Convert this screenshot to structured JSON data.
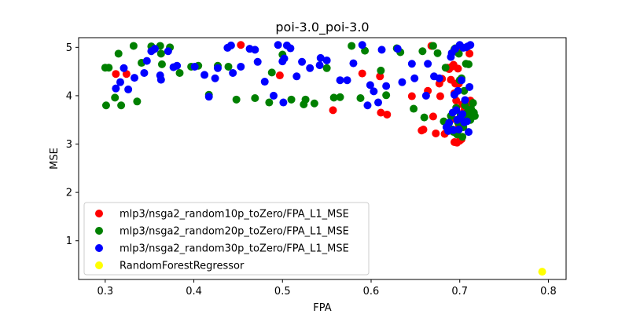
{
  "chart_data": {
    "type": "scatter",
    "title": "poi-3.0_poi-3.0",
    "xlabel": "FPA",
    "ylabel": "MSE",
    "xlim": [
      0.27,
      0.82
    ],
    "ylim": [
      0.2,
      5.2
    ],
    "xticks": [
      "0.3",
      "0.4",
      "0.5",
      "0.6",
      "0.7",
      "0.8"
    ],
    "yticks": [
      "1",
      "2",
      "3",
      "4",
      "5"
    ],
    "grid": false,
    "legend_position": "lower-left",
    "series": [
      {
        "name": "mlp3/nsga2_random10p_toZero/FPA_L1_MSE",
        "color": "#ff0000",
        "points": [
          [
            0.312,
            4.45
          ],
          [
            0.324,
            4.45
          ],
          [
            0.453,
            5.05
          ],
          [
            0.497,
            4.42
          ],
          [
            0.557,
            3.7
          ],
          [
            0.59,
            4.46
          ],
          [
            0.61,
            4.4
          ],
          [
            0.611,
            3.65
          ],
          [
            0.618,
            3.61
          ],
          [
            0.646,
            3.99
          ],
          [
            0.657,
            3.28
          ],
          [
            0.659,
            3.3
          ],
          [
            0.664,
            4.1
          ],
          [
            0.668,
            5.03
          ],
          [
            0.67,
            3.57
          ],
          [
            0.673,
            3.22
          ],
          [
            0.677,
            4.25
          ],
          [
            0.678,
            3.99
          ],
          [
            0.68,
            4.35
          ],
          [
            0.683,
            3.21
          ],
          [
            0.686,
            4.58
          ],
          [
            0.688,
            4.55
          ],
          [
            0.69,
            4.33
          ],
          [
            0.691,
            4.6
          ],
          [
            0.692,
            3.52
          ],
          [
            0.693,
            4.64
          ],
          [
            0.694,
            4.05
          ],
          [
            0.694,
            3.04
          ],
          [
            0.695,
            4.25
          ],
          [
            0.696,
            3.9
          ],
          [
            0.697,
            3.03
          ],
          [
            0.698,
            4.56
          ],
          [
            0.699,
            3.4
          ],
          [
            0.699,
            4.25
          ],
          [
            0.7,
            3.07
          ],
          [
            0.7,
            4.99
          ],
          [
            0.701,
            3.5
          ],
          [
            0.702,
            3.1
          ],
          [
            0.703,
            3.82
          ],
          [
            0.705,
            3.69
          ],
          [
            0.706,
            3.62
          ],
          [
            0.707,
            3.75
          ],
          [
            0.708,
            3.89
          ],
          [
            0.709,
            3.8
          ],
          [
            0.71,
            3.78
          ],
          [
            0.711,
            4.87
          ],
          [
            0.712,
            3.9
          ],
          [
            0.713,
            3.66
          ]
        ]
      },
      {
        "name": "mlp3/nsga2_random20p_toZero/FPA_L1_MSE",
        "color": "#008000",
        "points": [
          [
            0.3,
            4.58
          ],
          [
            0.301,
            3.8
          ],
          [
            0.304,
            4.58
          ],
          [
            0.311,
            3.96
          ],
          [
            0.315,
            4.87
          ],
          [
            0.318,
            3.8
          ],
          [
            0.332,
            5.03
          ],
          [
            0.336,
            3.88
          ],
          [
            0.341,
            4.68
          ],
          [
            0.352,
            5.02
          ],
          [
            0.354,
            4.95
          ],
          [
            0.362,
            5.03
          ],
          [
            0.363,
            4.87
          ],
          [
            0.364,
            4.65
          ],
          [
            0.373,
            5.0
          ],
          [
            0.384,
            4.47
          ],
          [
            0.397,
            4.6
          ],
          [
            0.405,
            4.62
          ],
          [
            0.417,
            4.02
          ],
          [
            0.427,
            4.62
          ],
          [
            0.439,
            4.6
          ],
          [
            0.448,
            3.92
          ],
          [
            0.469,
            3.95
          ],
          [
            0.485,
            3.86
          ],
          [
            0.488,
            4.48
          ],
          [
            0.5,
            4.85
          ],
          [
            0.51,
            3.92
          ],
          [
            0.524,
            3.82
          ],
          [
            0.526,
            3.92
          ],
          [
            0.536,
            3.84
          ],
          [
            0.55,
            4.57
          ],
          [
            0.558,
            3.96
          ],
          [
            0.565,
            3.97
          ],
          [
            0.578,
            5.03
          ],
          [
            0.588,
            3.95
          ],
          [
            0.593,
            4.93
          ],
          [
            0.611,
            4.52
          ],
          [
            0.617,
            4.01
          ],
          [
            0.629,
            4.98
          ],
          [
            0.633,
            4.9
          ],
          [
            0.648,
            3.73
          ],
          [
            0.658,
            4.92
          ],
          [
            0.66,
            3.55
          ],
          [
            0.67,
            5.03
          ],
          [
            0.675,
            4.88
          ],
          [
            0.682,
            3.47
          ],
          [
            0.684,
            4.58
          ],
          [
            0.687,
            3.4
          ],
          [
            0.69,
            3.58
          ],
          [
            0.692,
            3.3
          ],
          [
            0.693,
            3.25
          ],
          [
            0.694,
            4.96
          ],
          [
            0.695,
            4.98
          ],
          [
            0.696,
            3.75
          ],
          [
            0.697,
            3.2
          ],
          [
            0.698,
            3.45
          ],
          [
            0.699,
            4.87
          ],
          [
            0.7,
            4.32
          ],
          [
            0.701,
            3.6
          ],
          [
            0.702,
            4.36
          ],
          [
            0.703,
            3.15
          ],
          [
            0.704,
            3.35
          ],
          [
            0.705,
            4.1
          ],
          [
            0.706,
            3.8
          ],
          [
            0.707,
            4.66
          ],
          [
            0.708,
            3.65
          ],
          [
            0.709,
            3.55
          ],
          [
            0.71,
            4.65
          ],
          [
            0.711,
            3.7
          ],
          [
            0.712,
            3.5
          ],
          [
            0.713,
            3.72
          ],
          [
            0.714,
            3.6
          ],
          [
            0.715,
            3.85
          ],
          [
            0.716,
            3.65
          ],
          [
            0.717,
            3.58
          ]
        ]
      },
      {
        "name": "mlp3/nsga2_random30p_toZero/FPA_L1_MSE",
        "color": "#0000ff",
        "points": [
          [
            0.312,
            4.15
          ],
          [
            0.317,
            4.28
          ],
          [
            0.321,
            4.57
          ],
          [
            0.326,
            4.13
          ],
          [
            0.333,
            4.37
          ],
          [
            0.344,
            4.47
          ],
          [
            0.347,
            4.72
          ],
          [
            0.352,
            4.92
          ],
          [
            0.356,
            4.97
          ],
          [
            0.362,
            4.42
          ],
          [
            0.363,
            4.33
          ],
          [
            0.371,
            4.92
          ],
          [
            0.377,
            4.59
          ],
          [
            0.381,
            4.62
          ],
          [
            0.401,
            4.6
          ],
          [
            0.412,
            4.43
          ],
          [
            0.417,
            3.98
          ],
          [
            0.424,
            4.36
          ],
          [
            0.427,
            4.57
          ],
          [
            0.438,
            4.99
          ],
          [
            0.442,
            5.04
          ],
          [
            0.444,
            4.47
          ],
          [
            0.453,
            4.6
          ],
          [
            0.463,
            4.97
          ],
          [
            0.469,
            4.95
          ],
          [
            0.472,
            4.7
          ],
          [
            0.48,
            4.29
          ],
          [
            0.49,
            4.0
          ],
          [
            0.495,
            5.05
          ],
          [
            0.5,
            4.71
          ],
          [
            0.501,
            3.86
          ],
          [
            0.502,
            4.77
          ],
          [
            0.505,
            5.04
          ],
          [
            0.509,
            4.98
          ],
          [
            0.516,
            4.4
          ],
          [
            0.522,
            4.7
          ],
          [
            0.531,
            4.57
          ],
          [
            0.542,
            4.63
          ],
          [
            0.543,
            4.78
          ],
          [
            0.55,
            4.73
          ],
          [
            0.565,
            4.32
          ],
          [
            0.573,
            4.32
          ],
          [
            0.58,
            4.67
          ],
          [
            0.59,
            5.05
          ],
          [
            0.596,
            3.8
          ],
          [
            0.599,
            4.22
          ],
          [
            0.603,
            4.09
          ],
          [
            0.608,
            3.86
          ],
          [
            0.612,
            4.95
          ],
          [
            0.617,
            4.2
          ],
          [
            0.63,
            4.97
          ],
          [
            0.635,
            4.28
          ],
          [
            0.646,
            4.66
          ],
          [
            0.649,
            4.36
          ],
          [
            0.662,
            4.0
          ],
          [
            0.664,
            4.66
          ],
          [
            0.671,
            4.4
          ],
          [
            0.677,
            4.36
          ],
          [
            0.685,
            3.35
          ],
          [
            0.687,
            3.27
          ],
          [
            0.688,
            3.44
          ],
          [
            0.69,
            4.8
          ],
          [
            0.691,
            4.88
          ],
          [
            0.692,
            3.65
          ],
          [
            0.693,
            3.29
          ],
          [
            0.694,
            4.02
          ],
          [
            0.695,
            4.97
          ],
          [
            0.696,
            3.7
          ],
          [
            0.697,
            3.5
          ],
          [
            0.698,
            4.1
          ],
          [
            0.699,
            3.3
          ],
          [
            0.7,
            5.05
          ],
          [
            0.701,
            3.55
          ],
          [
            0.702,
            4.32
          ],
          [
            0.703,
            3.62
          ],
          [
            0.704,
            4.99
          ],
          [
            0.705,
            3.45
          ],
          [
            0.706,
            3.91
          ],
          [
            0.707,
            5.0
          ],
          [
            0.708,
            3.47
          ],
          [
            0.709,
            5.02
          ],
          [
            0.71,
            3.25
          ],
          [
            0.711,
            4.18
          ],
          [
            0.712,
            5.05
          ]
        ]
      },
      {
        "name": "RandomForestRegressor",
        "color": "#ffff00",
        "points": [
          [
            0.793,
            0.36
          ]
        ]
      }
    ]
  }
}
